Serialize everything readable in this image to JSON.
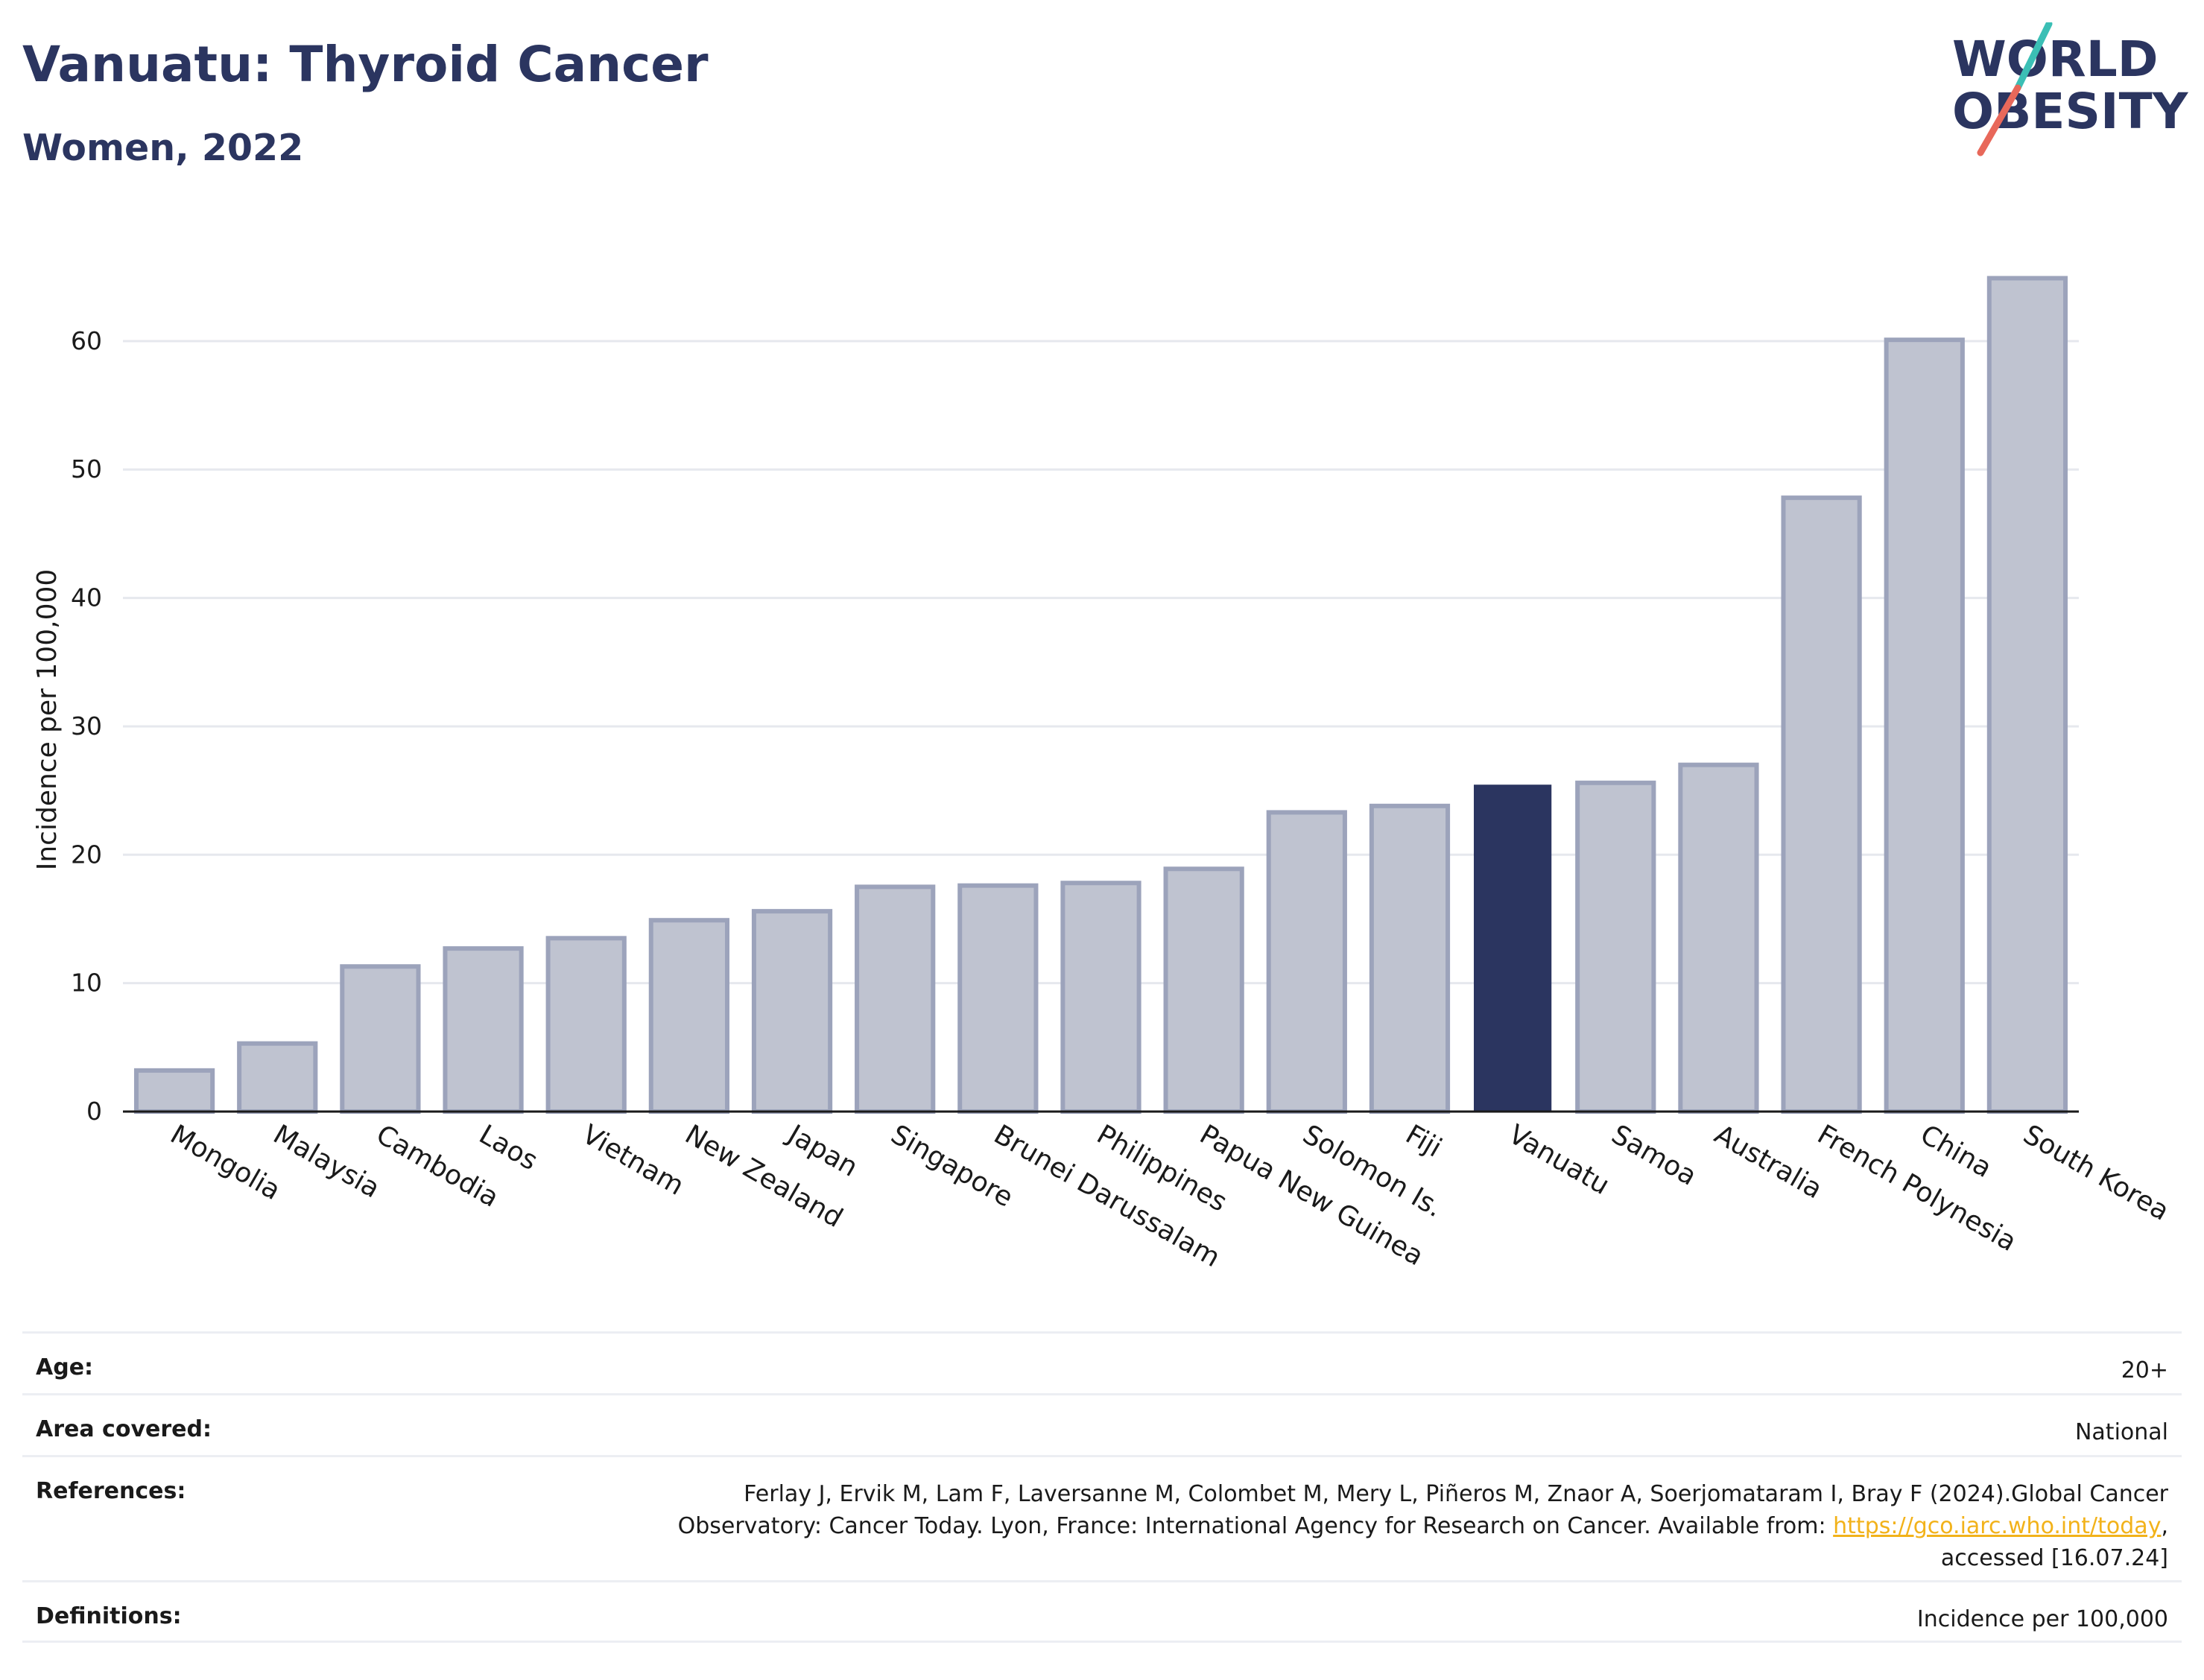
{
  "header": {
    "title": "Vanuatu: Thyroid Cancer",
    "subtitle": "Women, 2022"
  },
  "logo": {
    "line1": "WORLD",
    "line2": "OBESITY",
    "colors": {
      "text": "#2b3560",
      "slash_teal": "#3bbfb5",
      "slash_coral": "#e8685a"
    }
  },
  "chart_data": {
    "type": "bar",
    "ylabel": "Incidence per 100,000",
    "xlabel": "",
    "ylim": [
      0,
      68
    ],
    "yticks": [
      0,
      10,
      20,
      30,
      40,
      50,
      60
    ],
    "grid": true,
    "categories": [
      "Mongolia",
      "Malaysia",
      "Cambodia",
      "Laos",
      "Vietnam",
      "New Zealand",
      "Japan",
      "Singapore",
      "Brunei Darussalam",
      "Philippines",
      "Papua New Guinea",
      "Solomon Is.",
      "Fiji",
      "Vanuatu",
      "Samoa",
      "Australia",
      "French Polynesia",
      "China",
      "South Korea"
    ],
    "values": [
      3.2,
      5.3,
      11.3,
      12.7,
      13.5,
      14.9,
      15.6,
      17.5,
      17.6,
      17.8,
      18.9,
      23.3,
      23.8,
      25.4,
      25.6,
      27.0,
      47.8,
      60.1,
      64.9
    ],
    "highlight": "Vanuatu",
    "colors": {
      "bar": "#bfc3d0",
      "bar_border": "#9ca3bb",
      "highlight": "#2b3560",
      "grid": "#e6e8ee",
      "axis": "#1a1a1a"
    }
  },
  "info": {
    "age_label": "Age:",
    "age_value": "20+",
    "area_label": "Area covered:",
    "area_value": "National",
    "references_label": "References:",
    "references_line1": "Ferlay J, Ervik M, Lam F, Laversanne M, Colombet M, Mery L, Piñeros M, Znaor A, Soerjomataram I, Bray F (2024).Global Cancer",
    "references_line2_pre": "Observatory: Cancer Today. Lyon, France: International Agency for Research on Cancer. Available from:",
    "references_link": "https://gco.iarc.who.int/today",
    "references_line2_post": ",",
    "references_line3": "accessed [16.07.24]",
    "definitions_label": "Definitions:",
    "definitions_value": "Incidence per 100,000"
  }
}
